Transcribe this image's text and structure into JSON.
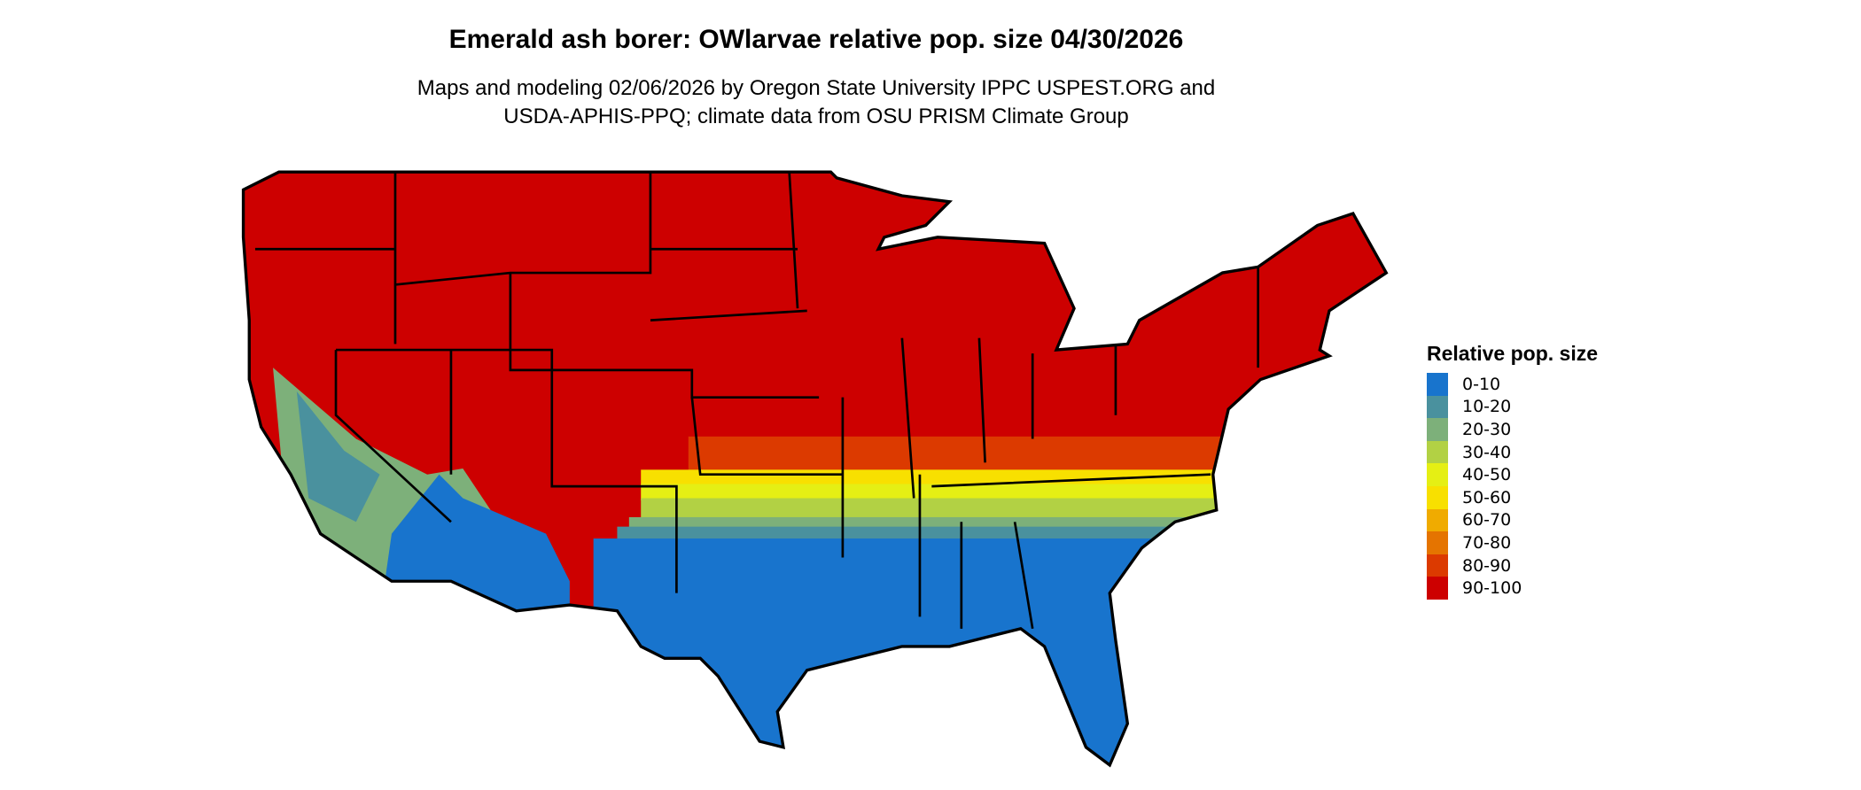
{
  "title": "Emerald ash borer: OWlarvae relative pop. size 04/30/2026",
  "subtitle_line1": "Maps and modeling 02/06/2026 by Oregon State University IPPC USPEST.ORG and",
  "subtitle_line2": "USDA-APHIS-PPQ; climate data from OSU PRISM Climate Group",
  "legend": {
    "title": "Relative pop. size",
    "items": [
      {
        "label": "0-10",
        "color": "#1874cd"
      },
      {
        "label": "10-20",
        "color": "#4a919e"
      },
      {
        "label": "20-30",
        "color": "#7db07a"
      },
      {
        "label": "30-40",
        "color": "#b2d144"
      },
      {
        "label": "40-50",
        "color": "#e5ef14"
      },
      {
        "label": "50-60",
        "color": "#f8e000"
      },
      {
        "label": "60-70",
        "color": "#f0ab00"
      },
      {
        "label": "70-80",
        "color": "#e57400"
      },
      {
        "label": "80-90",
        "color": "#dc3a00"
      },
      {
        "label": "90-100",
        "color": "#cd0000"
      }
    ]
  }
}
